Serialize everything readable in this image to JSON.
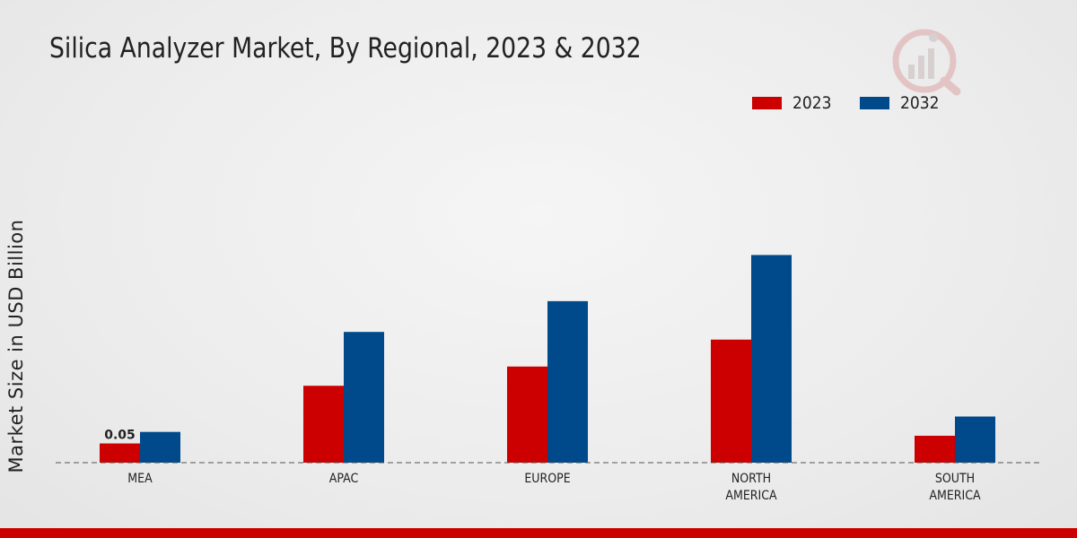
{
  "title": "Silica Analyzer Market, By Regional, 2023 & 2032",
  "colors": {
    "2023": "#cc0000",
    "2032": "#004a8c",
    "accent_bar": "#cc0000"
  },
  "logo": {
    "icon": "market-research-logo-icon"
  },
  "chart_data": {
    "type": "bar",
    "categories": [
      "MEA",
      "APAC",
      "EUROPE",
      "NORTH AMERICA",
      "SOUTH AMERICA"
    ],
    "category_lines": [
      [
        "MEA"
      ],
      [
        "APAC"
      ],
      [
        "EUROPE"
      ],
      [
        "NORTH",
        "AMERICA"
      ],
      [
        "SOUTH",
        "AMERICA"
      ]
    ],
    "series": [
      {
        "name": "2023",
        "values": [
          0.05,
          0.2,
          0.25,
          0.32,
          0.07
        ]
      },
      {
        "name": "2032",
        "values": [
          0.08,
          0.34,
          0.42,
          0.54,
          0.12
        ]
      }
    ],
    "data_labels": [
      {
        "series": "2023",
        "category": "MEA",
        "text": "0.05"
      }
    ],
    "ylabel": "Market Size in USD Billion",
    "xlabel": "",
    "ylim": [
      0,
      0.9
    ],
    "grid": false,
    "baseline": "dashed",
    "legend_position": "top-right"
  }
}
